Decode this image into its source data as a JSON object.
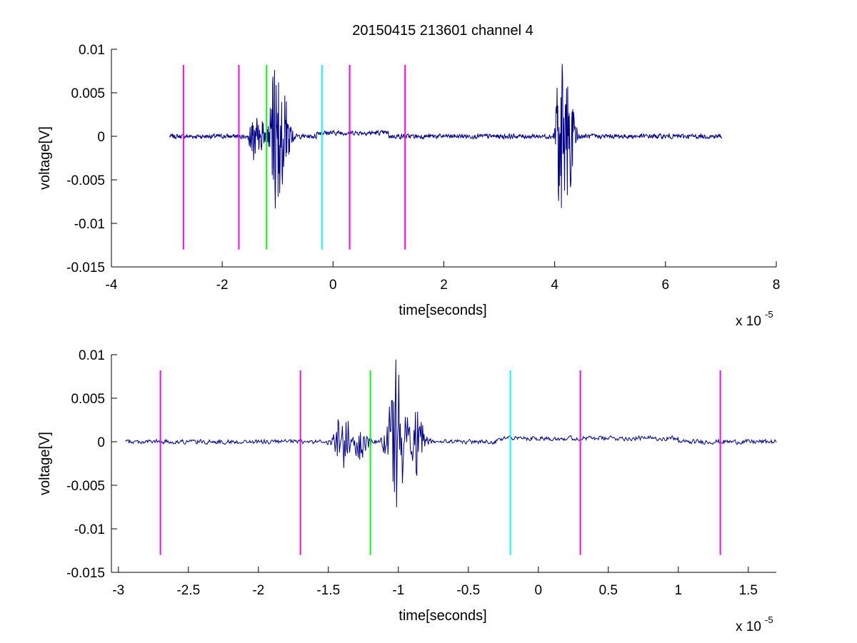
{
  "figure": {
    "title": "20150415 213601 channel 4"
  },
  "chart_data": [
    {
      "type": "line",
      "xlabel": "time[seconds]",
      "ylabel": "voltage[V]",
      "x_exponent_label": "x 10",
      "x_exponent_power": "-5",
      "xlim": [
        -4,
        8
      ],
      "ylim": [
        -0.015,
        0.01
      ],
      "xticks": [
        -4,
        -2,
        0,
        2,
        4,
        6,
        8
      ],
      "xtick_labels": [
        "-4",
        "-2",
        "0",
        "2",
        "4",
        "6",
        "8"
      ],
      "yticks": [
        0.01,
        0.005,
        0,
        -0.005,
        -0.01,
        -0.015
      ],
      "ytick_labels": [
        "0.01",
        "0.005",
        "0",
        "-0.005",
        "-0.01",
        "-0.015"
      ],
      "grid": false,
      "signal": {
        "color": "#00008b",
        "x_range": [
          -2.95,
          7.02
        ],
        "baseline_noise": 0.0004,
        "bursts": [
          {
            "center": -1.43,
            "width": 0.08,
            "amp": 0.0032
          },
          {
            "center": -1.3,
            "width": 0.08,
            "amp": 0.002
          },
          {
            "center": -1.02,
            "width": 0.12,
            "amp": 0.0095
          },
          {
            "center": -0.85,
            "width": 0.1,
            "amp": 0.004
          },
          {
            "center": 4.1,
            "width": 0.08,
            "amp": 0.0105
          },
          {
            "center": 4.25,
            "width": 0.12,
            "amp": 0.007
          }
        ]
      },
      "markers": [
        {
          "x": -2.7,
          "color": "#ff00ff"
        },
        {
          "x": -1.7,
          "color": "#ff00ff"
        },
        {
          "x": -1.2,
          "color": "#00ff00"
        },
        {
          "x": -0.2,
          "color": "#00ffff"
        },
        {
          "x": 0.3,
          "color": "#ff00ff"
        },
        {
          "x": 1.3,
          "color": "#ff00ff"
        }
      ],
      "marker_yrange": [
        -0.013,
        0.0082
      ]
    },
    {
      "type": "line",
      "xlabel": "time[seconds]",
      "ylabel": "voltage[V]",
      "x_exponent_label": "x 10",
      "x_exponent_power": "-5",
      "xlim": [
        -3.05,
        1.7
      ],
      "ylim": [
        -0.015,
        0.01
      ],
      "xticks": [
        -3,
        -2.5,
        -2,
        -1.5,
        -1,
        -0.5,
        0,
        0.5,
        1,
        1.5
      ],
      "xtick_labels": [
        "-3",
        "-2.5",
        "-2",
        "-1.5",
        "-1",
        "-0.5",
        "0",
        "0.5",
        "1",
        "1.5"
      ],
      "yticks": [
        0.01,
        0.005,
        0,
        -0.005,
        -0.01,
        -0.015
      ],
      "ytick_labels": [
        "0.01",
        "0.005",
        "0",
        "-0.005",
        "-0.01",
        "-0.015"
      ],
      "grid": false,
      "signal": {
        "color": "#00008b",
        "x_range": [
          -2.95,
          1.7
        ],
        "baseline_noise": 0.0004,
        "bursts": [
          {
            "center": -1.4,
            "width": 0.07,
            "amp": 0.0033
          },
          {
            "center": -1.27,
            "width": 0.06,
            "amp": 0.0022
          },
          {
            "center": -1.02,
            "width": 0.07,
            "amp": 0.0105
          },
          {
            "center": -0.88,
            "width": 0.07,
            "amp": 0.004
          }
        ]
      },
      "markers": [
        {
          "x": -2.7,
          "color": "#ff00ff"
        },
        {
          "x": -1.7,
          "color": "#ff00ff"
        },
        {
          "x": -1.2,
          "color": "#00ff00"
        },
        {
          "x": -0.2,
          "color": "#00ffff"
        },
        {
          "x": 0.3,
          "color": "#ff00ff"
        },
        {
          "x": 1.3,
          "color": "#ff00ff"
        }
      ],
      "marker_yrange": [
        -0.013,
        0.0082
      ]
    }
  ]
}
